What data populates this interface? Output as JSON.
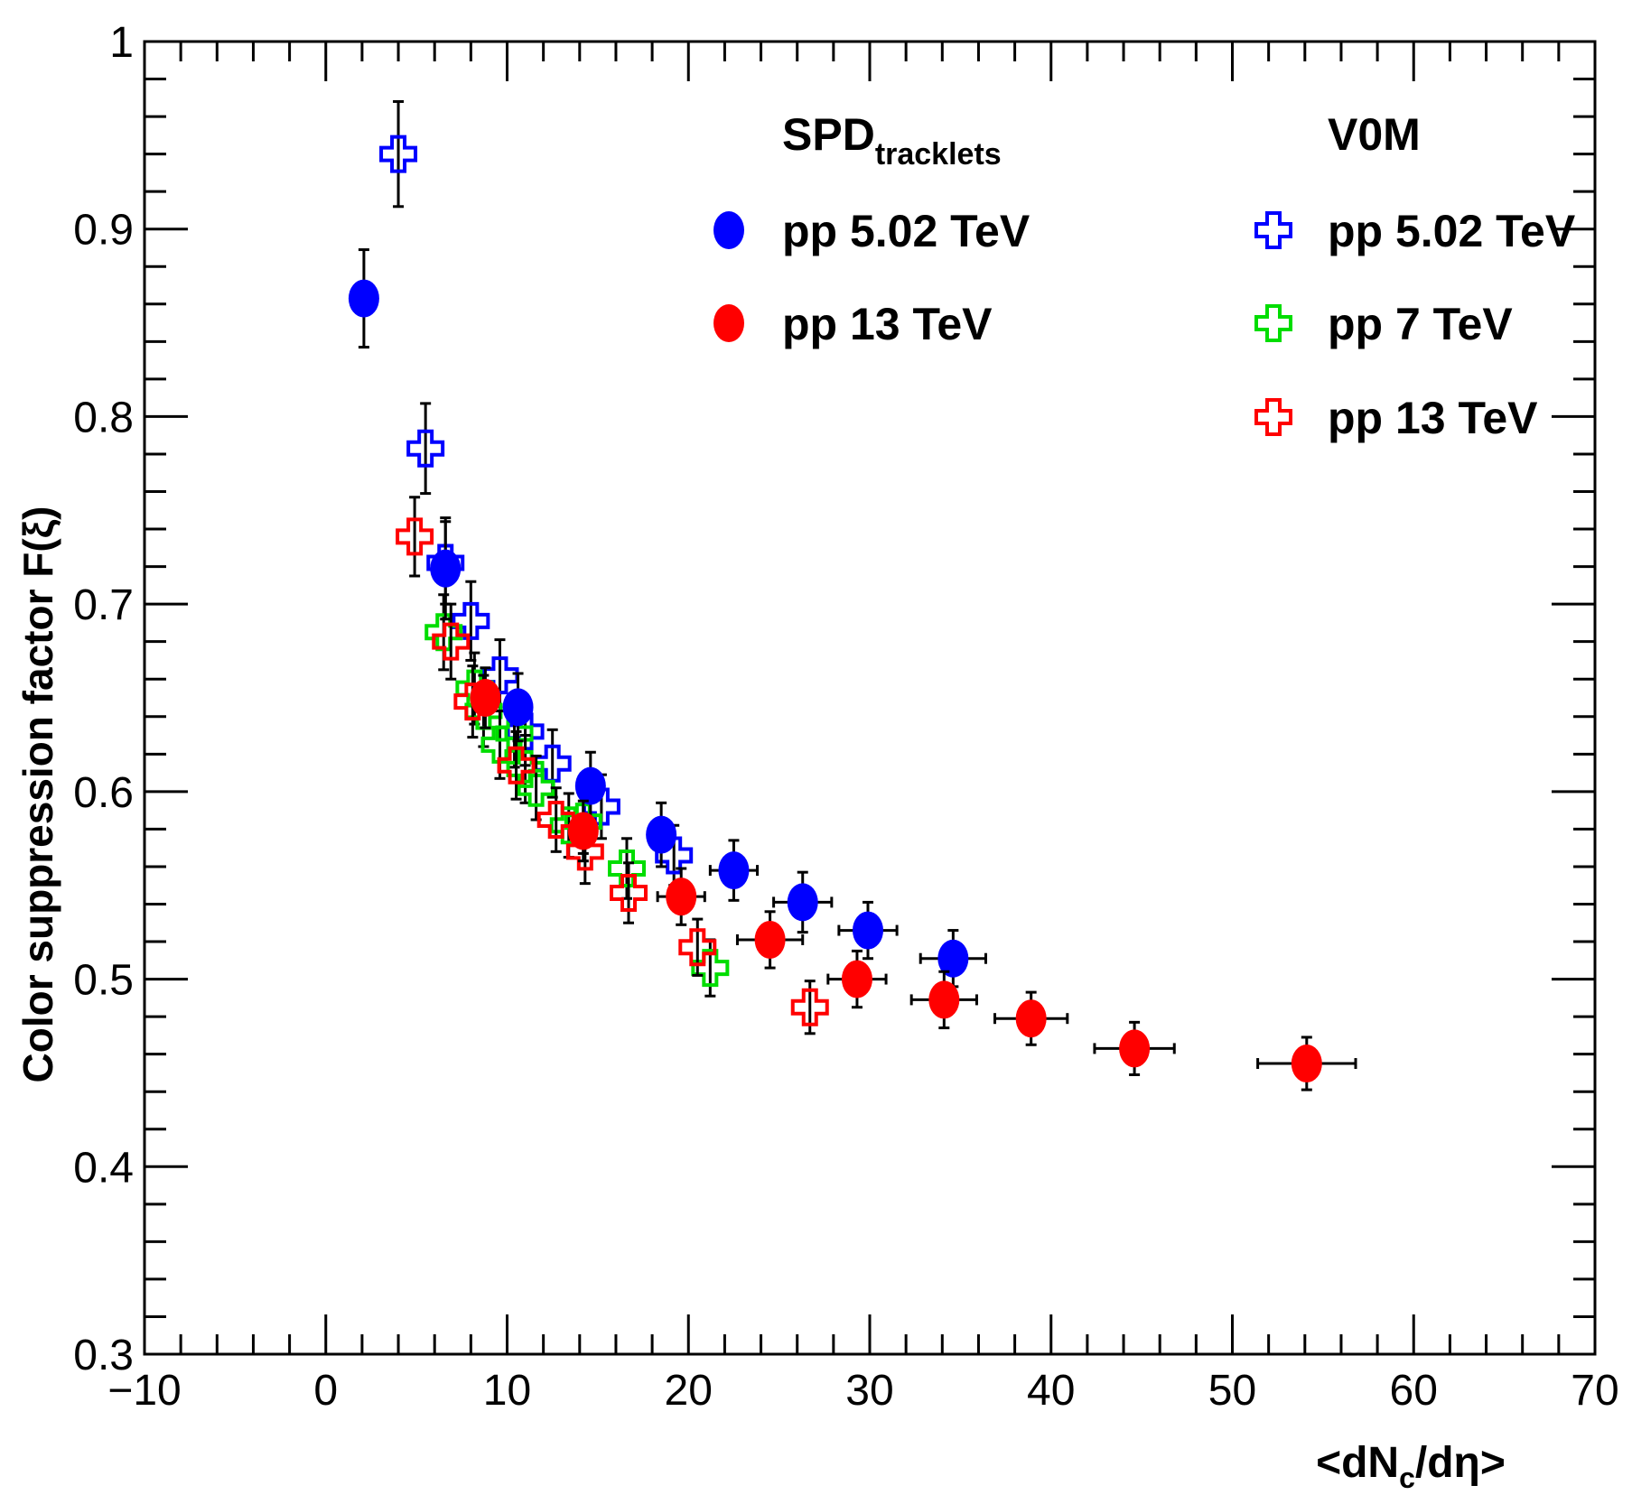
{
  "chart_data": {
    "type": "scatter",
    "title": "",
    "xlabel": "<dNc/dη>",
    "xlabel_parts": {
      "open": "<dN",
      "sub": "c",
      "close": "/dη>"
    },
    "ylabel": "Color suppression factor F(ξ)",
    "xlim": [
      -10,
      70
    ],
    "ylim": [
      0.3,
      1.0
    ],
    "x_ticks": [
      -10,
      0,
      10,
      20,
      30,
      40,
      50,
      60,
      70
    ],
    "x_tick_labels": [
      "−10",
      "0",
      "10",
      "20",
      "30",
      "40",
      "50",
      "60",
      "70"
    ],
    "y_ticks": [
      0.3,
      0.4,
      0.5,
      0.6,
      0.7,
      0.8,
      0.9,
      1.0
    ],
    "y_tick_labels": [
      "0.3",
      "0.4",
      "0.5",
      "0.6",
      "0.7",
      "0.8",
      "0.9",
      "1"
    ],
    "grid": false,
    "legend_headers": {
      "spd_main": "SPD",
      "spd_sub": "tracklets",
      "v0m": "V0M"
    },
    "series": [
      {
        "name": "pp 5.02 TeV",
        "group": "SPD",
        "marker": "filled-circle",
        "color": "#0000ff",
        "points": [
          {
            "x": 2.1,
            "y": 0.863,
            "xerr": 0,
            "yerr": 0.026
          },
          {
            "x": 6.6,
            "y": 0.719,
            "xerr": 0,
            "yerr": 0.027
          },
          {
            "x": 10.6,
            "y": 0.645,
            "xerr": 0,
            "yerr": 0.018
          },
          {
            "x": 14.6,
            "y": 0.603,
            "xerr": 0,
            "yerr": 0.018
          },
          {
            "x": 18.5,
            "y": 0.577,
            "xerr": 0,
            "yerr": 0.017
          },
          {
            "x": 22.5,
            "y": 0.558,
            "xerr": 1.3,
            "yerr": 0.016
          },
          {
            "x": 26.3,
            "y": 0.541,
            "xerr": 1.6,
            "yerr": 0.016
          },
          {
            "x": 29.9,
            "y": 0.526,
            "xerr": 1.6,
            "yerr": 0.015
          },
          {
            "x": 34.6,
            "y": 0.511,
            "xerr": 1.8,
            "yerr": 0.015
          }
        ]
      },
      {
        "name": "pp 13 TeV",
        "group": "SPD",
        "marker": "filled-circle",
        "color": "#ff0000",
        "points": [
          {
            "x": 8.8,
            "y": 0.65,
            "xerr": 0,
            "yerr": 0.016
          },
          {
            "x": 14.2,
            "y": 0.579,
            "xerr": 0,
            "yerr": 0.016
          },
          {
            "x": 19.6,
            "y": 0.544,
            "xerr": 1.3,
            "yerr": 0.015
          },
          {
            "x": 24.5,
            "y": 0.521,
            "xerr": 1.8,
            "yerr": 0.015
          },
          {
            "x": 29.3,
            "y": 0.5,
            "xerr": 1.6,
            "yerr": 0.015
          },
          {
            "x": 34.1,
            "y": 0.489,
            "xerr": 1.8,
            "yerr": 0.015
          },
          {
            "x": 38.9,
            "y": 0.479,
            "xerr": 2.0,
            "yerr": 0.014
          },
          {
            "x": 44.6,
            "y": 0.463,
            "xerr": 2.2,
            "yerr": 0.014
          },
          {
            "x": 54.1,
            "y": 0.455,
            "xerr": 2.7,
            "yerr": 0.014
          }
        ]
      },
      {
        "name": "pp 5.02 TeV",
        "group": "V0M",
        "marker": "open-cross",
        "color": "#0000ff",
        "points": [
          {
            "x": 4.0,
            "y": 0.94,
            "xerr": 0,
            "yerr": 0.028
          },
          {
            "x": 5.5,
            "y": 0.783,
            "xerr": 0,
            "yerr": 0.024
          },
          {
            "x": 6.6,
            "y": 0.722,
            "xerr": 0,
            "yerr": 0.022
          },
          {
            "x": 8.0,
            "y": 0.691,
            "xerr": 0,
            "yerr": 0.021
          },
          {
            "x": 9.6,
            "y": 0.662,
            "xerr": 0,
            "yerr": 0.019
          },
          {
            "x": 11.0,
            "y": 0.632,
            "xerr": 0,
            "yerr": 0.018
          },
          {
            "x": 12.5,
            "y": 0.615,
            "xerr": 0,
            "yerr": 0.018
          },
          {
            "x": 15.2,
            "y": 0.592,
            "xerr": 0,
            "yerr": 0.017
          },
          {
            "x": 19.2,
            "y": 0.566,
            "xerr": 0,
            "yerr": 0.016
          }
        ]
      },
      {
        "name": "pp 7 TeV",
        "group": "V0M",
        "marker": "open-cross",
        "color": "#00dd00",
        "points": [
          {
            "x": 6.5,
            "y": 0.685,
            "xerr": 0,
            "yerr": 0.02
          },
          {
            "x": 8.2,
            "y": 0.655,
            "xerr": 0,
            "yerr": 0.019
          },
          {
            "x": 8.7,
            "y": 0.643,
            "xerr": 0,
            "yerr": 0.019
          },
          {
            "x": 9.6,
            "y": 0.625,
            "xerr": 0,
            "yerr": 0.018
          },
          {
            "x": 10.4,
            "y": 0.631,
            "xerr": 0,
            "yerr": 0.018
          },
          {
            "x": 11.0,
            "y": 0.612,
            "xerr": 0,
            "yerr": 0.018
          },
          {
            "x": 11.6,
            "y": 0.602,
            "xerr": 0,
            "yerr": 0.017
          },
          {
            "x": 13.4,
            "y": 0.582,
            "xerr": 0,
            "yerr": 0.017
          },
          {
            "x": 14.2,
            "y": 0.584,
            "xerr": 0,
            "yerr": 0.017
          },
          {
            "x": 16.6,
            "y": 0.559,
            "xerr": 0,
            "yerr": 0.016
          },
          {
            "x": 21.2,
            "y": 0.506,
            "xerr": 0,
            "yerr": 0.015
          }
        ]
      },
      {
        "name": "pp 13 TeV",
        "group": "V0M",
        "marker": "open-cross",
        "color": "#ff0000",
        "points": [
          {
            "x": 4.9,
            "y": 0.736,
            "xerr": 0,
            "yerr": 0.021
          },
          {
            "x": 6.9,
            "y": 0.68,
            "xerr": 0,
            "yerr": 0.02
          },
          {
            "x": 8.1,
            "y": 0.648,
            "xerr": 0,
            "yerr": 0.019
          },
          {
            "x": 10.5,
            "y": 0.614,
            "xerr": 0,
            "yerr": 0.018
          },
          {
            "x": 12.7,
            "y": 0.585,
            "xerr": 0,
            "yerr": 0.017
          },
          {
            "x": 14.3,
            "y": 0.568,
            "xerr": 0,
            "yerr": 0.017
          },
          {
            "x": 16.7,
            "y": 0.546,
            "xerr": 0,
            "yerr": 0.016
          },
          {
            "x": 20.5,
            "y": 0.517,
            "xerr": 0,
            "yerr": 0.015
          },
          {
            "x": 26.7,
            "y": 0.485,
            "xerr": 0,
            "yerr": 0.014
          }
        ]
      }
    ]
  },
  "legend": {
    "spd_items": [
      {
        "label": "pp 5.02 TeV",
        "color": "#0000ff",
        "marker": "filled-circle"
      },
      {
        "label": "pp 13 TeV",
        "color": "#ff0000",
        "marker": "filled-circle"
      }
    ],
    "v0m_items": [
      {
        "label": "pp 5.02 TeV",
        "color": "#0000ff",
        "marker": "open-cross"
      },
      {
        "label": "pp 7 TeV",
        "color": "#00dd00",
        "marker": "open-cross"
      },
      {
        "label": "pp 13 TeV",
        "color": "#ff0000",
        "marker": "open-cross"
      }
    ]
  }
}
